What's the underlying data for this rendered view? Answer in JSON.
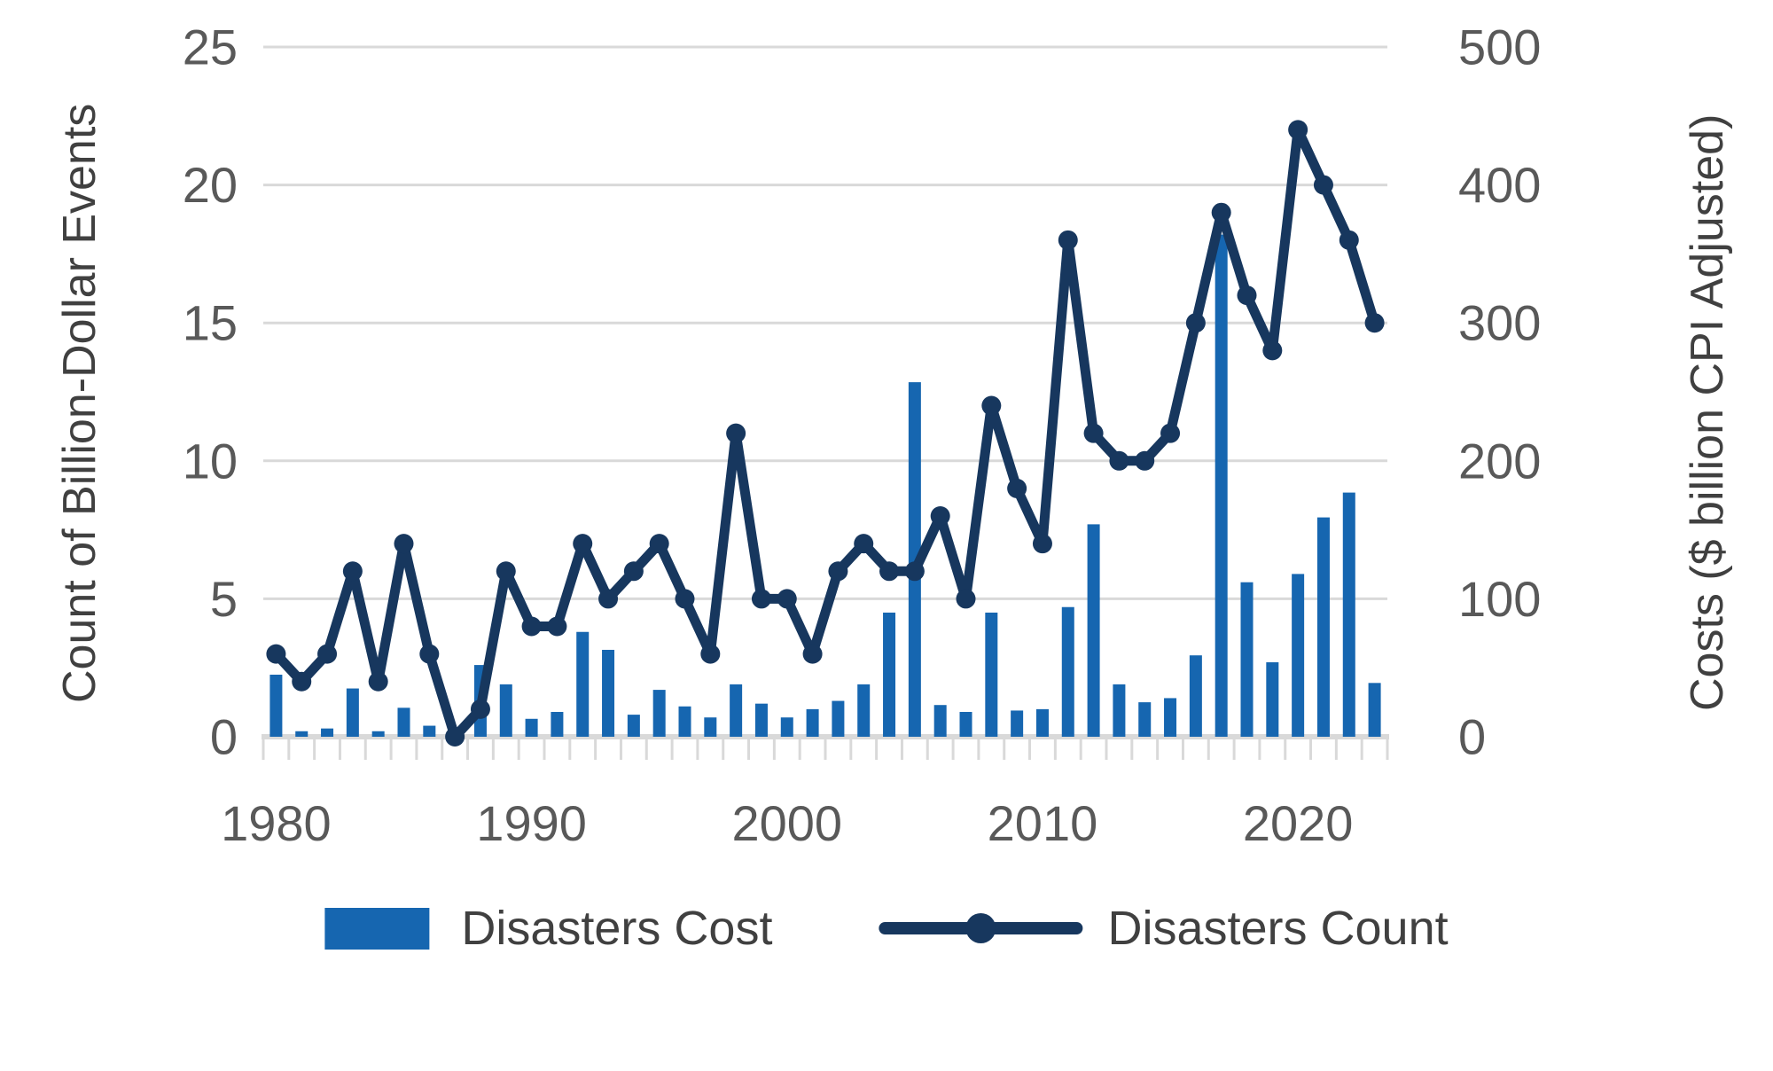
{
  "chart_data": {
    "type": "combo-bar-line",
    "years": [
      1980,
      1981,
      1982,
      1983,
      1984,
      1985,
      1986,
      1987,
      1988,
      1989,
      1990,
      1991,
      1992,
      1993,
      1994,
      1995,
      1996,
      1997,
      1998,
      1999,
      2000,
      2001,
      2002,
      2003,
      2004,
      2005,
      2006,
      2007,
      2008,
      2009,
      2010,
      2011,
      2012,
      2013,
      2014,
      2015,
      2016,
      2017,
      2018,
      2019,
      2020,
      2021,
      2022,
      2023
    ],
    "series": [
      {
        "name": "Disasters Cost",
        "type": "bar",
        "axis": "right",
        "color": "#1666b0",
        "values": [
          45,
          4,
          6,
          35,
          4,
          21,
          8,
          0,
          52,
          38,
          13,
          18,
          76,
          63,
          16,
          34,
          22,
          14,
          38,
          24,
          14,
          20,
          26,
          38,
          90,
          257,
          23,
          18,
          90,
          19,
          20,
          94,
          154,
          38,
          25,
          28,
          59,
          364,
          112,
          54,
          118,
          159,
          177,
          39
        ]
      },
      {
        "name": "Disasters Count",
        "type": "line",
        "axis": "left",
        "color": "#17375e",
        "values": [
          3,
          2,
          3,
          6,
          2,
          7,
          3,
          0,
          1,
          6,
          4,
          4,
          7,
          5,
          6,
          7,
          5,
          3,
          11,
          5,
          5,
          3,
          6,
          7,
          6,
          6,
          8,
          5,
          12,
          9,
          7,
          18,
          11,
          10,
          10,
          11,
          15,
          19,
          16,
          14,
          22,
          20,
          18,
          15
        ]
      }
    ],
    "left_axis": {
      "label": "Count of Billion-Dollar Events",
      "ticks": [
        0,
        5,
        10,
        15,
        20,
        25
      ],
      "range": [
        0,
        25
      ]
    },
    "right_axis": {
      "label": "Costs ($ billion CPI Adjusted)",
      "ticks": [
        0,
        100,
        200,
        300,
        400,
        500
      ],
      "range": [
        0,
        500
      ]
    },
    "x_axis": {
      "tick_labels": [
        1980,
        1990,
        2000,
        2010,
        2020
      ],
      "range": [
        1980,
        2023
      ]
    },
    "legend": {
      "cost_label": "Disasters Cost",
      "count_label": "Disasters Count"
    },
    "colors": {
      "grid": "#d9d9d9",
      "axis_line": "#d9d9d9",
      "tick_text": "#595959",
      "title_text": "#404040"
    },
    "grid": true,
    "legend_position": "bottom"
  }
}
